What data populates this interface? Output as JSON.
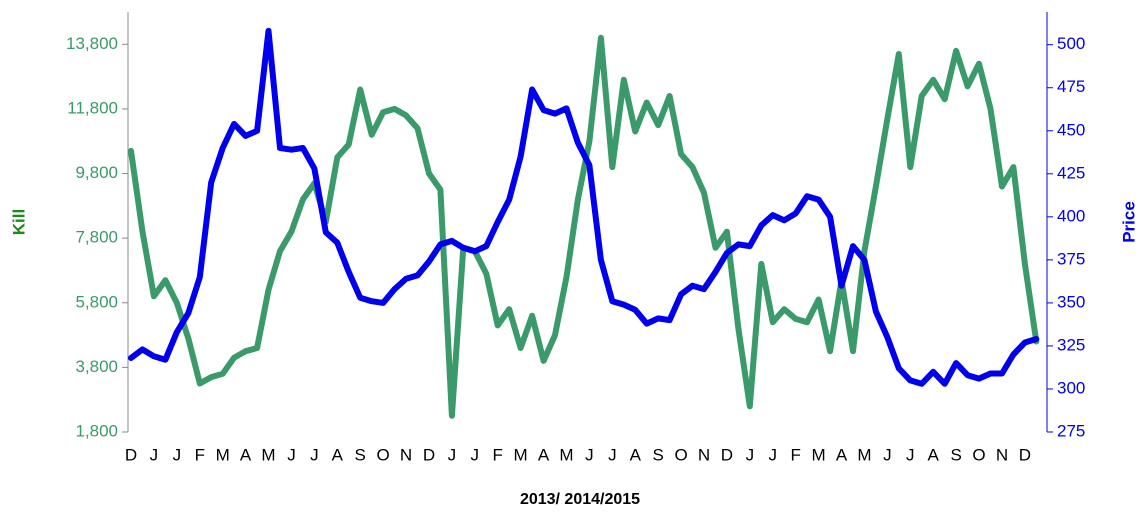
{
  "chart_data": {
    "type": "line",
    "x_label": "2013/ 2014/2015",
    "y_label": "Kill",
    "y2_label": "Price",
    "categories": [
      "D",
      null,
      "J",
      null,
      "J",
      null,
      "F",
      null,
      "M",
      null,
      "A",
      null,
      "M",
      null,
      "J",
      null,
      "J",
      null,
      "A",
      null,
      "S",
      null,
      "O",
      null,
      "N",
      null,
      "D",
      null,
      "J",
      null,
      "J",
      null,
      "F",
      null,
      "M",
      null,
      "A",
      null,
      "M",
      null,
      "J",
      null,
      "J",
      null,
      "A",
      null,
      "S",
      null,
      "O",
      null,
      "N",
      null,
      "D",
      null,
      "J",
      null,
      "J",
      null,
      "F",
      null,
      "M",
      null,
      "A",
      null,
      "M",
      null,
      "J",
      null,
      "J",
      null,
      "A",
      null,
      "S",
      null,
      "O",
      null,
      "N",
      null,
      "D",
      null
    ],
    "series": [
      {
        "name": "Kill",
        "color": "#3a9a6a",
        "axis": "y",
        "values": [
          10500,
          8000,
          6000,
          6500,
          5800,
          4700,
          3300,
          3500,
          3600,
          4100,
          4300,
          4400,
          6200,
          7400,
          8000,
          9000,
          9500,
          8300,
          10300,
          10700,
          12400,
          11000,
          11700,
          11800,
          11600,
          11200,
          9800,
          9300,
          2300,
          7500,
          7400,
          6700,
          5100,
          5600,
          4400,
          5400,
          4000,
          4800,
          6600,
          9000,
          10800,
          14000,
          10000,
          12700,
          11100,
          12000,
          11300,
          12200,
          10400,
          10000,
          9200,
          7500,
          8000,
          5000,
          2600,
          7000,
          5200,
          5600,
          5300,
          5200,
          5900,
          4300,
          6500,
          4300,
          7400,
          9400,
          11500,
          13500,
          10000,
          12200,
          12700,
          12100,
          13600,
          12500,
          13200,
          11800,
          9400,
          10000,
          7000,
          4600
        ]
      },
      {
        "name": "Price",
        "color": "#0000ee",
        "axis": "y2",
        "values": [
          318,
          323,
          319,
          317,
          333,
          344,
          365,
          420,
          440,
          454,
          447,
          450,
          508,
          440,
          439,
          440,
          428,
          391,
          385,
          368,
          353,
          351,
          350,
          358,
          364,
          366,
          374,
          384,
          386,
          382,
          380,
          383,
          397,
          410,
          435,
          474,
          462,
          460,
          463,
          443,
          430,
          375,
          351,
          349,
          346,
          338,
          341,
          340,
          355,
          360,
          358,
          368,
          379,
          384,
          383,
          395,
          401,
          398,
          402,
          412,
          410,
          400,
          360,
          383,
          375,
          345,
          330,
          312,
          305,
          303,
          310,
          303,
          315,
          308,
          306,
          309,
          309,
          320,
          327,
          329
        ]
      }
    ],
    "ylim": [
      1800,
      14800
    ],
    "yticks": [
      {
        "value": 1800,
        "label": "1,800"
      },
      {
        "value": 3800,
        "label": "3,800"
      },
      {
        "value": 5800,
        "label": "5,800"
      },
      {
        "value": 7800,
        "label": "7,800"
      },
      {
        "value": 9800,
        "label": "9,800"
      },
      {
        "value": 11800,
        "label": "11,800"
      },
      {
        "value": 13800,
        "label": "13,800"
      }
    ],
    "y2lim": [
      275,
      519
    ],
    "y2ticks": [
      275,
      300,
      325,
      350,
      375,
      400,
      425,
      450,
      475,
      500
    ],
    "grid": false
  }
}
